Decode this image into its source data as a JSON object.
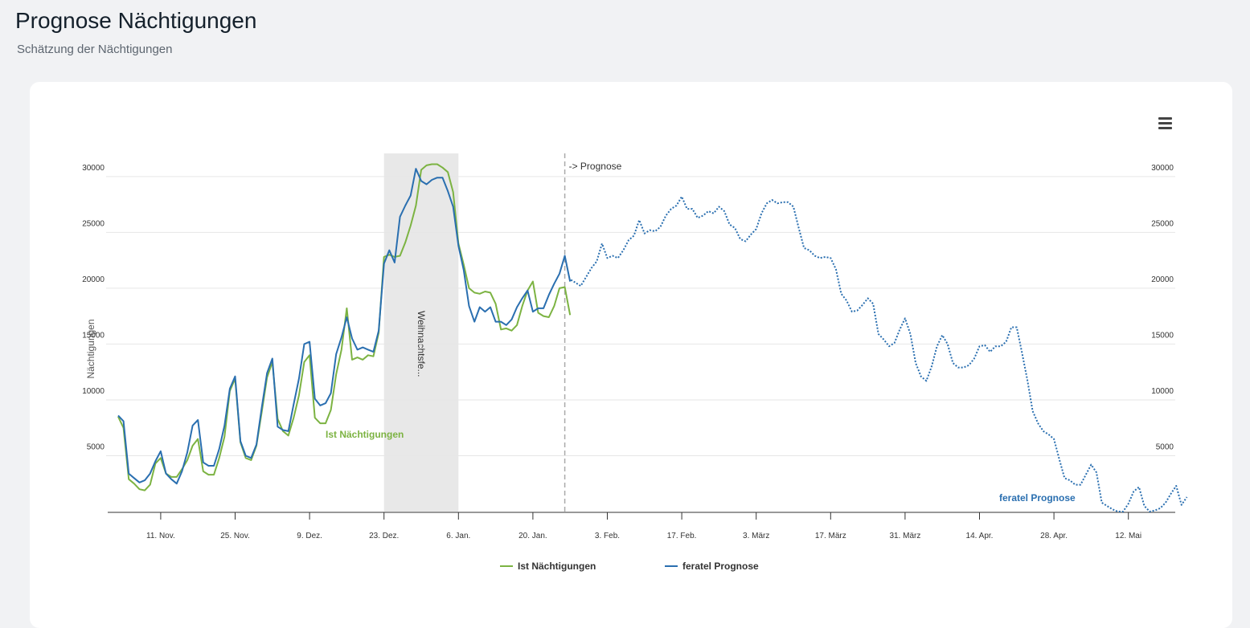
{
  "page": {
    "title": "Prognose Nächtigungen",
    "subtitle": "Schätzung der Nächtigungen"
  },
  "menu": {
    "icon": "hamburger-menu-icon"
  },
  "colors": {
    "ist": "#7cb342",
    "prognose": "#2a6fb0",
    "band": "#e8e8e8",
    "grid": "#e6e6e6"
  },
  "chart_data": {
    "type": "line",
    "ylabel": "Nächtigungen",
    "ylim": [
      0,
      32000
    ],
    "yticks": [
      5000,
      10000,
      15000,
      20000,
      25000,
      30000
    ],
    "x_ticks": [
      {
        "day": 8,
        "label": "11. Nov."
      },
      {
        "day": 22,
        "label": "25. Nov."
      },
      {
        "day": 36,
        "label": "9. Dez."
      },
      {
        "day": 50,
        "label": "23. Dez."
      },
      {
        "day": 64,
        "label": "6. Jan."
      },
      {
        "day": 78,
        "label": "20. Jan."
      },
      {
        "day": 92,
        "label": "3. Feb."
      },
      {
        "day": 106,
        "label": "17. Feb."
      },
      {
        "day": 120,
        "label": "3. März"
      },
      {
        "day": 134,
        "label": "17. März"
      },
      {
        "day": 148,
        "label": "31. März"
      },
      {
        "day": 162,
        "label": "14. Apr."
      },
      {
        "day": 176,
        "label": "28. Apr."
      },
      {
        "day": 190,
        "label": "12. Mai"
      }
    ],
    "plot_band": {
      "from_day": 50,
      "to_day": 64,
      "label": "Weihnachtsfe..."
    },
    "plot_line": {
      "day": 84,
      "label": "-> Prognose"
    },
    "series": [
      {
        "name": "Ist Nächtigungen",
        "start_day": 0,
        "values": [
          8500,
          7500,
          2900,
          2500,
          2000,
          1900,
          2400,
          4300,
          4800,
          3400,
          3100,
          3100,
          3800,
          4600,
          5900,
          6500,
          3600,
          3300,
          3300,
          4800,
          6700,
          10800,
          11900,
          6200,
          4800,
          4600,
          5900,
          8900,
          12000,
          13400,
          8300,
          7200,
          6800,
          8400,
          10400,
          13400,
          14000,
          8400,
          7900,
          7900,
          9100,
          12300,
          14500,
          18200,
          13600,
          13800,
          13600,
          14000,
          13900,
          16000,
          22800,
          23000,
          22800,
          22900,
          24100,
          25600,
          27400,
          30600,
          31000,
          31100,
          31100,
          30800,
          30400,
          28600,
          24000,
          22100,
          20000,
          19600,
          19500,
          19700,
          19600,
          18600,
          16300,
          16400,
          16200,
          16700,
          18400,
          19800,
          20600,
          17800,
          17500,
          17400,
          18400,
          20000,
          20100,
          17600
        ]
      },
      {
        "name": "feratel Prognose",
        "start_day": 0,
        "values": [
          8600,
          8100,
          3400,
          3000,
          2600,
          2800,
          3400,
          4500,
          5400,
          3400,
          2900,
          2500,
          3600,
          5300,
          7700,
          8200,
          4400,
          4100,
          4100,
          5600,
          7700,
          11000,
          12100,
          6300,
          5000,
          4800,
          6000,
          9300,
          12400,
          13700,
          7600,
          7300,
          7200,
          9600,
          11900,
          15000,
          15200,
          10100,
          9500,
          9700,
          10600,
          14100,
          15600,
          17400,
          15500,
          14500,
          14700,
          14500,
          14300,
          16200,
          22200,
          23400,
          22300,
          26400,
          27400,
          28300,
          30700,
          29600,
          29300,
          29700,
          29900,
          29900,
          28700,
          27300,
          23800,
          21600,
          18400,
          17000,
          18300,
          17900,
          18300,
          17000,
          17000,
          16700,
          17200,
          18300,
          19100,
          19800,
          17900,
          18200,
          18200,
          19400,
          20400,
          21300,
          22900,
          20600
        ]
      },
      {
        "name": "feratel Prognose (Prognose)",
        "start_day": 85,
        "values": [
          20800,
          20500,
          20200,
          21000,
          21800,
          22400,
          24000,
          22700,
          22900,
          22700,
          23400,
          24300,
          24700,
          26100,
          24900,
          25200,
          25100,
          25500,
          26500,
          27100,
          27400,
          28200,
          27100,
          27100,
          26300,
          26500,
          26900,
          26700,
          27300,
          26900,
          25700,
          25400,
          24400,
          24200,
          24800,
          25300,
          26700,
          27600,
          27900,
          27600,
          27700,
          27700,
          27300,
          25400,
          23600,
          23400,
          22900,
          22700,
          22800,
          22700,
          21700,
          19500,
          18900,
          17900,
          18000,
          18500,
          19100,
          18600,
          15900,
          15400,
          14800,
          15100,
          16300,
          17300,
          15900,
          13300,
          12100,
          11700,
          13000,
          14800,
          15800,
          15000,
          13300,
          12900,
          12900,
          13100,
          13700,
          14800,
          14900,
          14300,
          14800,
          14800,
          15200,
          16500,
          16500,
          14200,
          11800,
          9000,
          7900,
          7200,
          6900,
          6500,
          4700,
          3000,
          2800,
          2400,
          2400,
          3300,
          4200,
          3500,
          800,
          500,
          200,
          0,
          0,
          700,
          1800,
          2200,
          500,
          0,
          100,
          300,
          800,
          1600,
          2300,
          600,
          1300
        ]
      }
    ],
    "annotations": [
      {
        "text": "Ist Nächtigungen",
        "series": 0
      },
      {
        "text": "feratel Prognose",
        "series": 1
      }
    ],
    "legend": {
      "position": "bottom",
      "items": [
        "Ist Nächtigungen",
        "feratel Prognose"
      ]
    },
    "grid": true
  }
}
